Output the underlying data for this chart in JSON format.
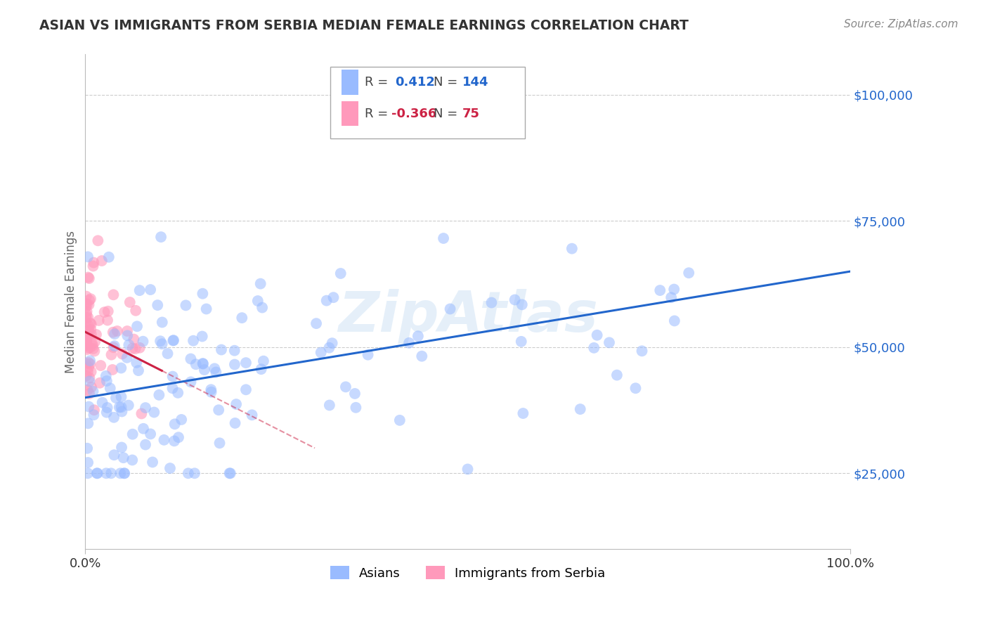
{
  "title": "ASIAN VS IMMIGRANTS FROM SERBIA MEDIAN FEMALE EARNINGS CORRELATION CHART",
  "source_text": "Source: ZipAtlas.com",
  "ylabel": "Median Female Earnings",
  "watermark": "ZipAtlas",
  "legend_labels": [
    "Asians",
    "Immigrants from Serbia"
  ],
  "r_asian": 0.412,
  "n_asian": 144,
  "r_serbia": -0.366,
  "n_serbia": 75,
  "blue_scatter_color": "#99bbff",
  "pink_scatter_color": "#ff99bb",
  "blue_line_color": "#2266cc",
  "pink_line_color": "#cc2244",
  "xlim": [
    0.0,
    1.0
  ],
  "ylim": [
    10000,
    108000
  ],
  "yticks": [
    25000,
    50000,
    75000,
    100000
  ],
  "ytick_labels": [
    "$25,000",
    "$50,000",
    "$75,000",
    "$100,000"
  ],
  "xtick_labels": [
    "0.0%",
    "100.0%"
  ],
  "background_color": "#ffffff",
  "grid_color": "#cccccc",
  "title_color": "#333333",
  "axis_label_color": "#666666",
  "right_tick_color": "#2266cc",
  "blue_trend_y0": 40000,
  "blue_trend_y1": 65000,
  "pink_trend_x0": 0.0,
  "pink_trend_y0": 53000,
  "pink_trend_x1_solid": 0.1,
  "pink_trend_x1_dash": 0.3,
  "pink_trend_y1": 30000
}
